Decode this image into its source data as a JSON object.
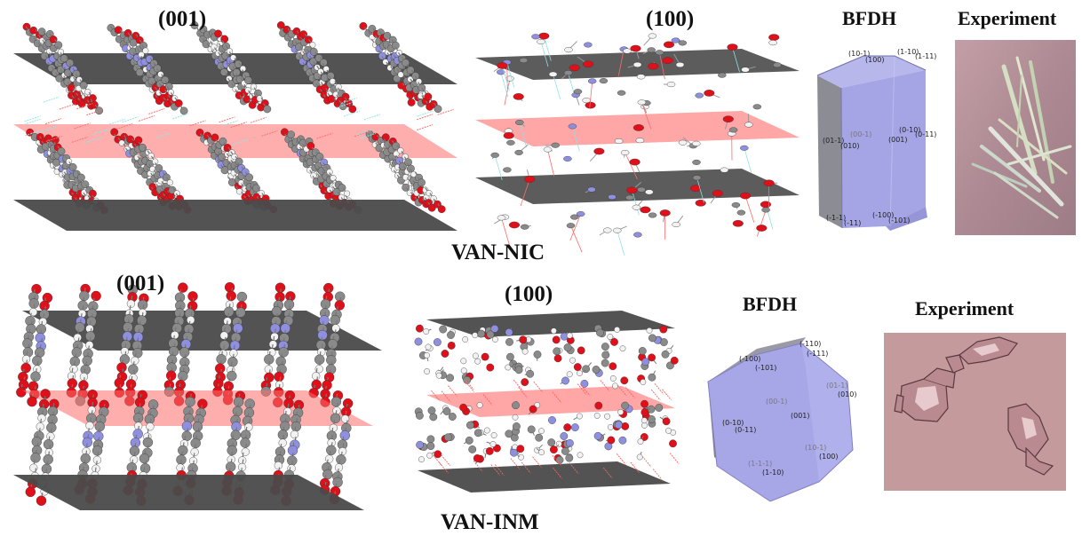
{
  "top": {
    "plane_labels": [
      "(001)",
      "(100)"
    ],
    "bfdh_label": "BFDH",
    "experiment_label": "Experiment",
    "compound_label": "VAN-NIC",
    "bfdh_facets": [
      "(10-1)",
      "(100)",
      "(1-10)",
      "(1-11)",
      "(00-1)",
      "(01-1)",
      "(010)",
      "(0-10)",
      "(0-11)",
      "(001)",
      "(-1-1)",
      "(-11)",
      "(-100)",
      "(-101)"
    ]
  },
  "bottom": {
    "plane_labels": [
      "(001)",
      "(100)"
    ],
    "bfdh_label": "BFDH",
    "experiment_label": "Experiment",
    "compound_label": "VAN-INM",
    "bfdh_facets": [
      "(-110)",
      "(-100)",
      "(-111)",
      "(-101)",
      "(00-1)",
      "(01-1)",
      "(010)",
      "(001)",
      "(0-10)",
      "(0-11)",
      "(10-1)",
      "(100)",
      "(1-1-1)",
      "(1-10)"
    ]
  },
  "colors": {
    "plane_gray": "#4a4a4a",
    "plane_red": "#ff6b6b",
    "oxygen": "#e0101a",
    "nitrogen": "#8f8fe0",
    "carbon": "#8a8a8a",
    "hydrogen": "#f2f2f2",
    "crystal_face": "#a8a8e8",
    "photo_top": "#b18e98",
    "photo_bottom": "#c49a9d"
  }
}
